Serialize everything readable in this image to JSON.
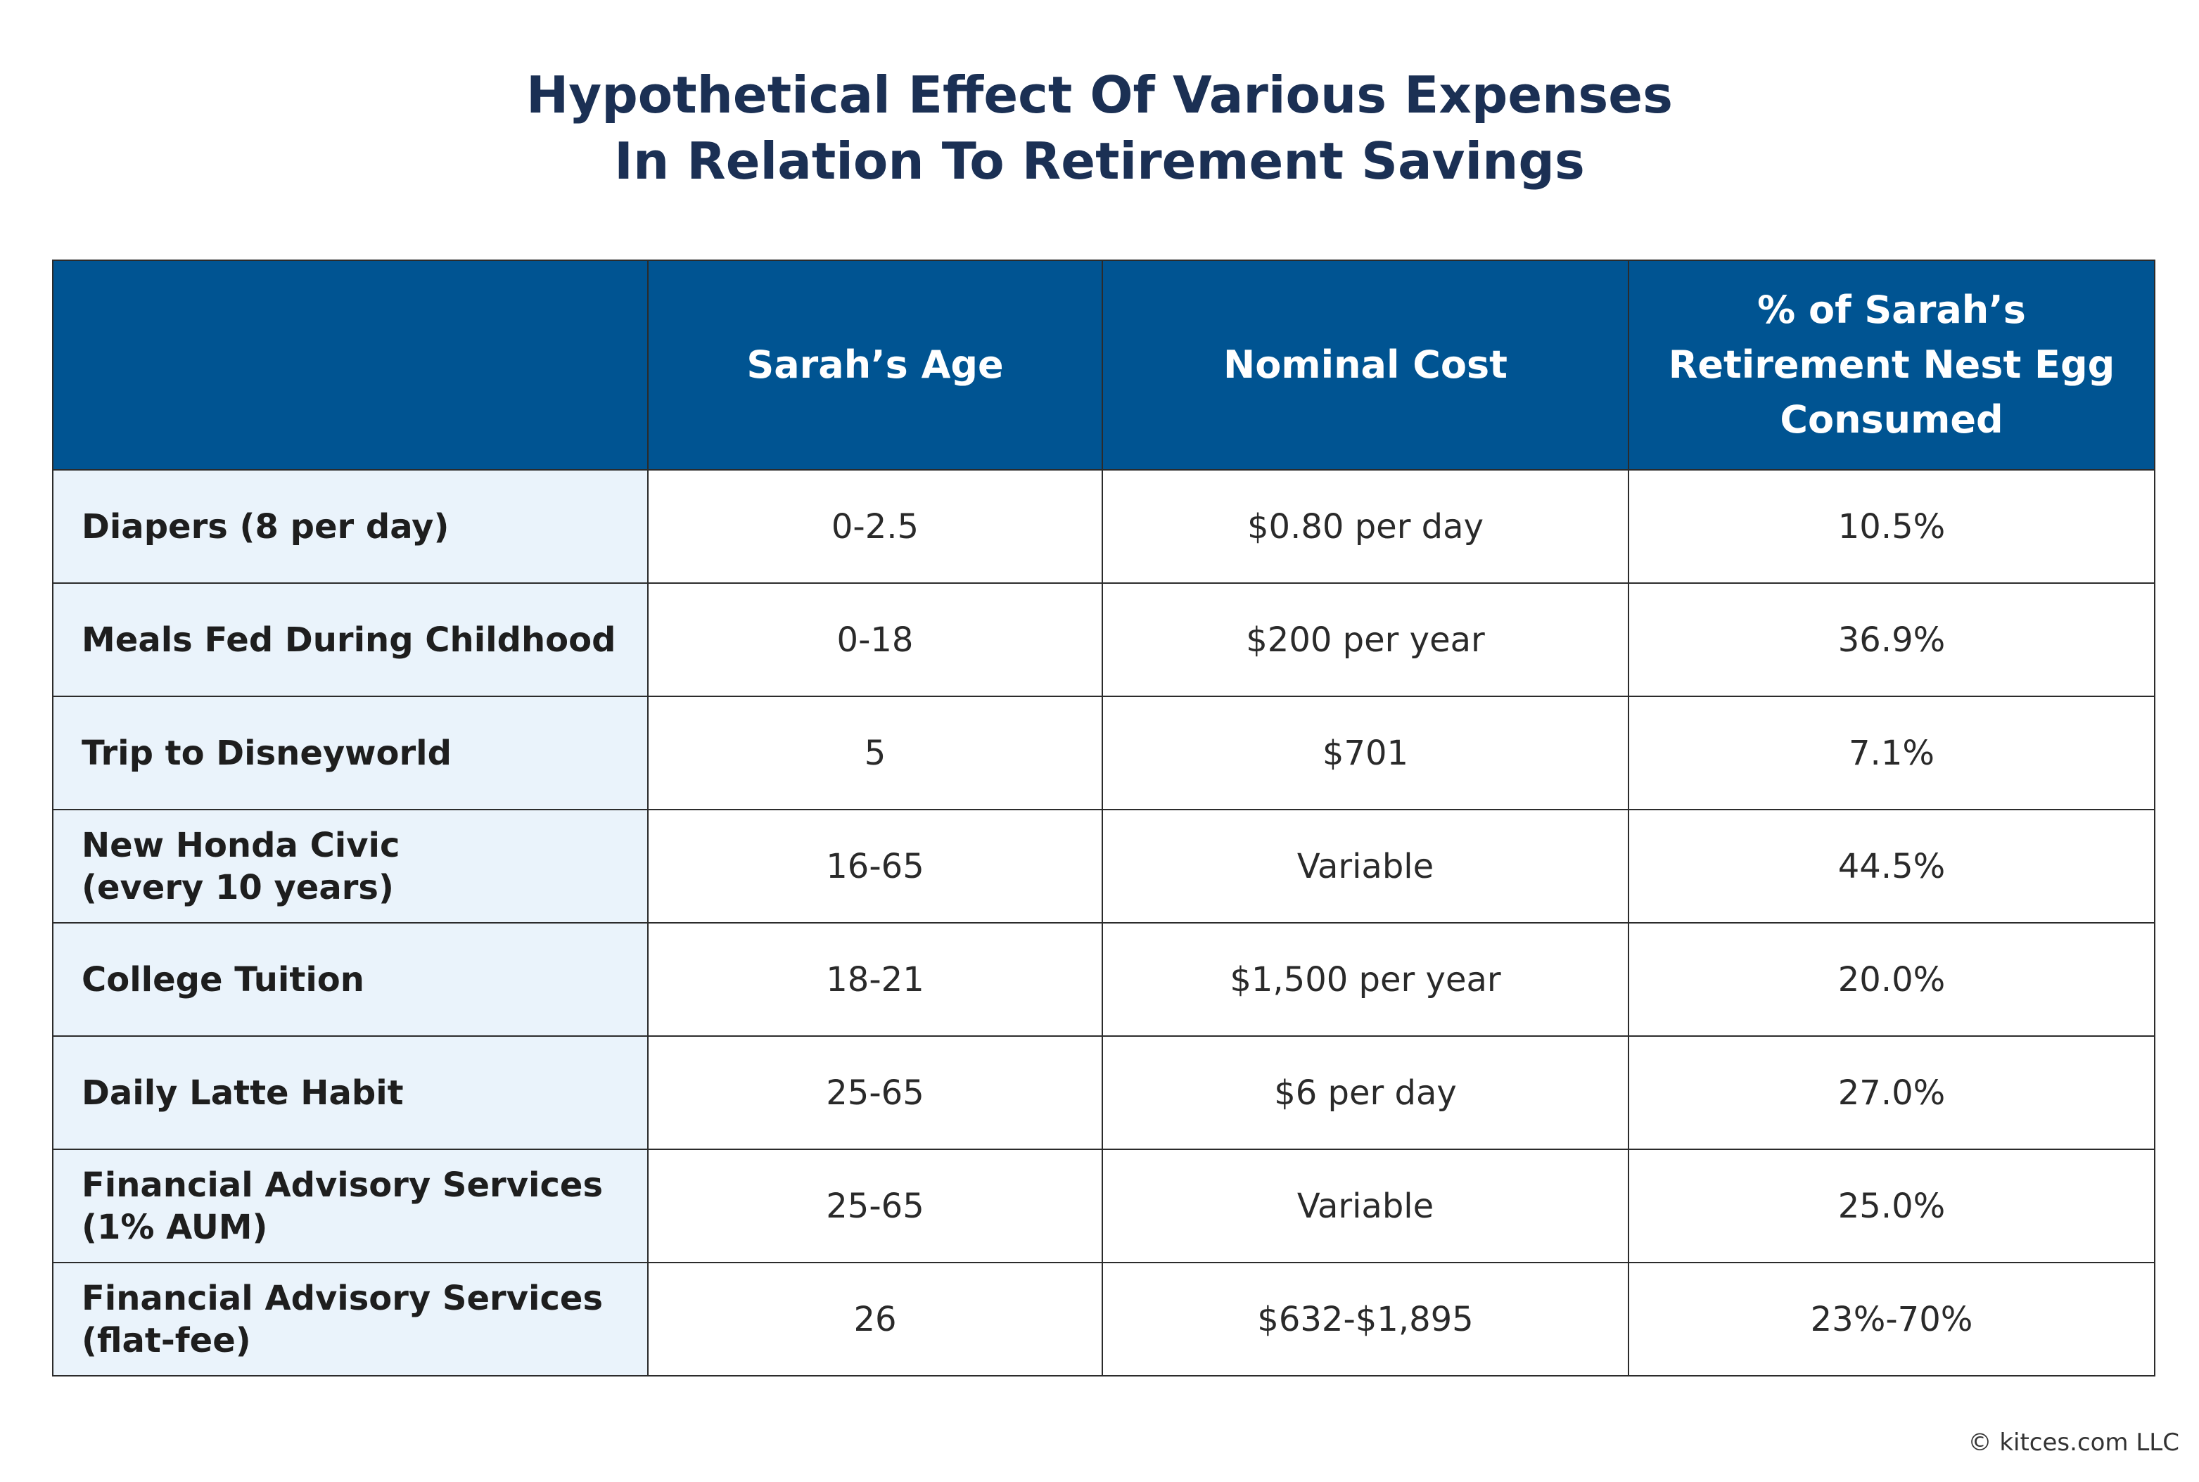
{
  "title": {
    "line1": "Hypothetical Effect Of Various Expenses",
    "line2": "In Relation To Retirement Savings"
  },
  "table": {
    "headers": {
      "col0": "",
      "col1": "Sarah’s Age",
      "col2": "Nominal Cost",
      "col3_line1": "% of Sarah’s",
      "col3_line2": "Retirement Nest Egg",
      "col3_line3": "Consumed"
    },
    "rows": [
      {
        "label_line1": "Diapers (8 per day)",
        "label_line2": "",
        "age": "0-2.5",
        "cost": "$0.80 per day",
        "percent": "10.5%"
      },
      {
        "label_line1": "Meals Fed During Childhood",
        "label_line2": "",
        "age": "0-18",
        "cost": "$200 per year",
        "percent": "36.9%"
      },
      {
        "label_line1": "Trip to Disneyworld",
        "label_line2": "",
        "age": "5",
        "cost": "$701",
        "percent": "7.1%"
      },
      {
        "label_line1": "New Honda Civic",
        "label_line2": "(every 10 years)",
        "age": "16-65",
        "cost": "Variable",
        "percent": "44.5%"
      },
      {
        "label_line1": "College Tuition",
        "label_line2": "",
        "age": "18-21",
        "cost": "$1,500 per year",
        "percent": "20.0%"
      },
      {
        "label_line1": "Daily Latte Habit",
        "label_line2": "",
        "age": "25-65",
        "cost": "$6 per day",
        "percent": "27.0%"
      },
      {
        "label_line1": "Financial Advisory Services",
        "label_line2": "(1% AUM)",
        "age": "25-65",
        "cost": "Variable",
        "percent": "25.0%"
      },
      {
        "label_line1": "Financial Advisory Services",
        "label_line2": "(flat-fee)",
        "age": "26",
        "cost": "$632-$1,895",
        "percent": "23%-70%"
      }
    ]
  },
  "footer": {
    "copyright": "© kitces.com LLC"
  },
  "colors": {
    "title": "#1b3054",
    "header_bg": "#005492",
    "header_text": "#ffffff",
    "label_bg": "#eaf3fb",
    "border": "#2b2b2b"
  }
}
